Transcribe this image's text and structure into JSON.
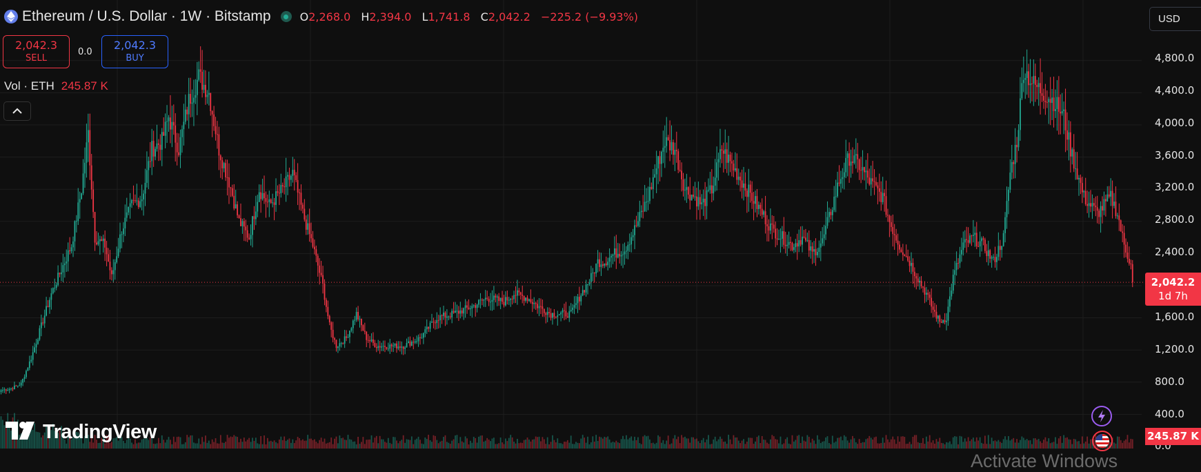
{
  "header": {
    "title": "Ethereum / U.S. Dollar · 1W · Bitstamp",
    "ohlc": {
      "open_key": "O",
      "open": "2,268.0",
      "high_key": "H",
      "high": "2,394.0",
      "low_key": "L",
      "low": "1,741.8",
      "close_key": "C",
      "close": "2,042.2",
      "change": "−225.2 (−9.93%)"
    }
  },
  "trade": {
    "sell_price": "2,042.3",
    "sell_label": "SELL",
    "spread": "0.0",
    "buy_price": "2,042.3",
    "buy_label": "BUY"
  },
  "volume_legend": {
    "label": "Vol · ETH",
    "value": "245.87 K"
  },
  "currency_selector": {
    "value": "USD"
  },
  "price_axis": {
    "labels": [
      "4,800.0",
      "4,400.0",
      "4,000.0",
      "3,600.0",
      "3,200.0",
      "2,800.0",
      "2,400.0",
      "1,600.0",
      "1,200.0",
      "800.0",
      "400.0",
      "0.0"
    ]
  },
  "last_price_tag": {
    "price": "2,042.2",
    "countdown": "1d 7h"
  },
  "volume_tag": {
    "value": "245.87 K"
  },
  "logo": {
    "text": "TradingView"
  },
  "watermark": {
    "text": "Activate Windows"
  },
  "colors": {
    "up": "#22ab94",
    "down": "#f23645",
    "background": "#0f0f0f",
    "grid": "#1e1e1e",
    "buy": "#2962ff"
  },
  "icons": {
    "symbol": "ethereum-icon",
    "market_status": "market-open-dot-icon",
    "collapse": "chevron-up-icon",
    "assistant": "lightning-icon",
    "flag": "us-flag-icon"
  },
  "chart_data": {
    "type": "candlestick",
    "interval": "1W",
    "y_axis": {
      "min": 0,
      "max": 5000,
      "ticks": [
        400,
        800,
        1200,
        1600,
        2000,
        2400,
        2800,
        3200,
        3600,
        4000,
        4400,
        4800
      ],
      "grid": true
    },
    "current_price": 2042.2,
    "price_keypoints": [
      [
        0,
        700
      ],
      [
        6,
        720
      ],
      [
        12,
        780
      ],
      [
        18,
        1100
      ],
      [
        24,
        1500
      ],
      [
        30,
        1900
      ],
      [
        36,
        2200
      ],
      [
        42,
        2500
      ],
      [
        48,
        3200
      ],
      [
        52,
        3900
      ],
      [
        56,
        2600
      ],
      [
        62,
        2500
      ],
      [
        66,
        2100
      ],
      [
        72,
        2700
      ],
      [
        78,
        3000
      ],
      [
        84,
        3100
      ],
      [
        90,
        3700
      ],
      [
        96,
        3800
      ],
      [
        100,
        4100
      ],
      [
        106,
        3700
      ],
      [
        112,
        4300
      ],
      [
        118,
        4600
      ],
      [
        124,
        4400
      ],
      [
        130,
        3700
      ],
      [
        136,
        3300
      ],
      [
        142,
        2800
      ],
      [
        148,
        2600
      ],
      [
        154,
        3200
      ],
      [
        160,
        3000
      ],
      [
        168,
        3200
      ],
      [
        174,
        3400
      ],
      [
        180,
        2900
      ],
      [
        186,
        2500
      ],
      [
        192,
        2000
      ],
      [
        196,
        1500
      ],
      [
        200,
        1250
      ],
      [
        206,
        1350
      ],
      [
        212,
        1650
      ],
      [
        218,
        1350
      ],
      [
        224,
        1250
      ],
      [
        232,
        1250
      ],
      [
        240,
        1250
      ],
      [
        250,
        1350
      ],
      [
        260,
        1600
      ],
      [
        270,
        1650
      ],
      [
        282,
        1750
      ],
      [
        290,
        1850
      ],
      [
        300,
        1800
      ],
      [
        306,
        1900
      ],
      [
        314,
        1850
      ],
      [
        320,
        1750
      ],
      [
        328,
        1650
      ],
      [
        334,
        1650
      ],
      [
        340,
        1650
      ],
      [
        346,
        1900
      ],
      [
        352,
        2100
      ],
      [
        356,
        2300
      ],
      [
        360,
        2300
      ],
      [
        366,
        2400
      ],
      [
        372,
        2450
      ],
      [
        378,
        2700
      ],
      [
        386,
        3100
      ],
      [
        390,
        3400
      ],
      [
        396,
        3800
      ],
      [
        402,
        3700
      ],
      [
        408,
        3200
      ],
      [
        414,
        3100
      ],
      [
        418,
        3000
      ],
      [
        424,
        3200
      ],
      [
        430,
        3700
      ],
      [
        436,
        3500
      ],
      [
        442,
        3300
      ],
      [
        448,
        3100
      ],
      [
        454,
        2900
      ],
      [
        460,
        2700
      ],
      [
        466,
        2600
      ],
      [
        472,
        2500
      ],
      [
        478,
        2600
      ],
      [
        484,
        2400
      ],
      [
        490,
        2550
      ],
      [
        496,
        3000
      ],
      [
        500,
        3300
      ],
      [
        506,
        3600
      ],
      [
        512,
        3500
      ],
      [
        518,
        3300
      ],
      [
        522,
        3200
      ],
      [
        526,
        3100
      ],
      [
        530,
        2800
      ],
      [
        536,
        2500
      ],
      [
        542,
        2300
      ],
      [
        548,
        2050
      ],
      [
        552,
        1900
      ],
      [
        556,
        1700
      ],
      [
        560,
        1550
      ],
      [
        564,
        1600
      ],
      [
        568,
        2100
      ],
      [
        574,
        2500
      ],
      [
        580,
        2600
      ],
      [
        586,
        2500
      ],
      [
        592,
        2300
      ],
      [
        598,
        2600
      ],
      [
        602,
        3400
      ],
      [
        606,
        3800
      ],
      [
        610,
        4700
      ],
      [
        616,
        4500
      ],
      [
        622,
        4400
      ],
      [
        628,
        4300
      ],
      [
        634,
        4100
      ],
      [
        638,
        3700
      ],
      [
        642,
        3400
      ],
      [
        646,
        3100
      ],
      [
        650,
        3000
      ],
      [
        654,
        2900
      ],
      [
        658,
        3000
      ],
      [
        662,
        3100
      ],
      [
        666,
        2900
      ],
      [
        670,
        2500
      ],
      [
        674,
        2268
      ],
      [
        675,
        2042.2
      ]
    ],
    "volume_note": "weekly volume bars shown at bottom of pane; last bar 245.87 K ETH"
  }
}
